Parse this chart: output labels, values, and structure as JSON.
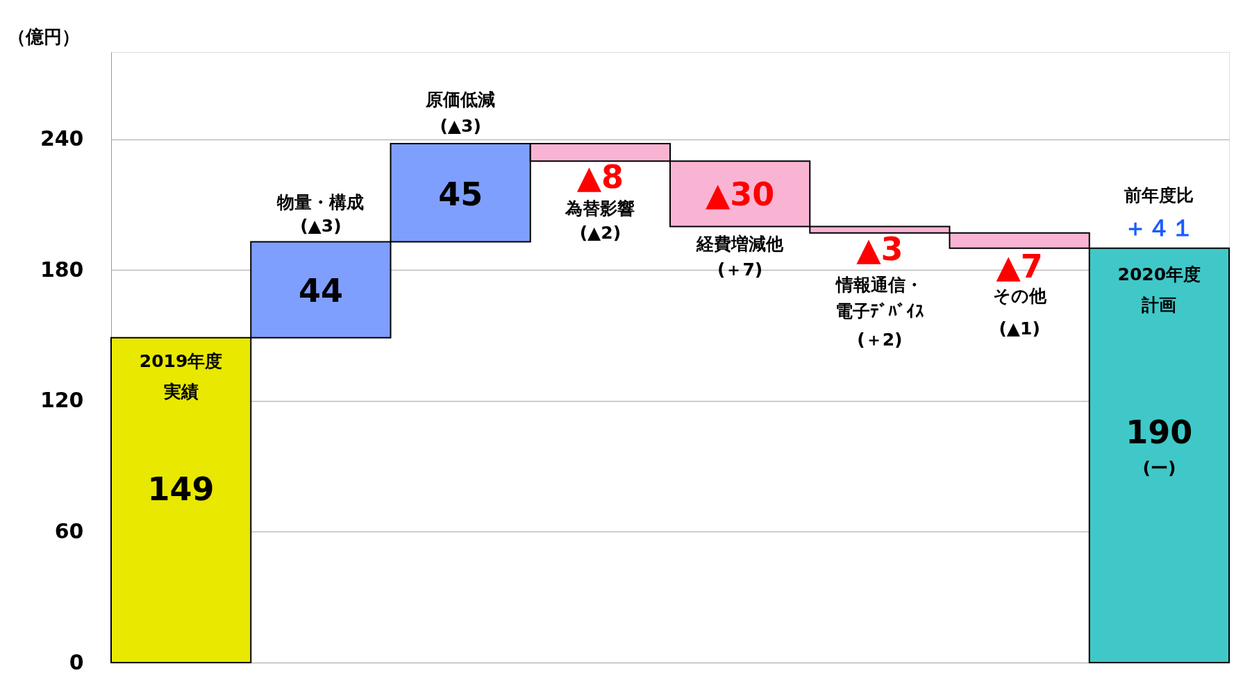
{
  "chart_data": {
    "type": "bar",
    "ylabel": "（億円）",
    "categories": [
      null,
      null,
      null,
      null,
      null,
      null,
      null,
      null
    ],
    "values": [
      149,
      44,
      45,
      -8,
      -30,
      -3,
      -7,
      190
    ],
    "base": [
      0,
      149,
      193,
      238,
      230,
      200,
      197,
      0
    ],
    "colors": [
      "#e8e800",
      "#7f9fff",
      "#7f9fff",
      "#f9b4d4",
      "#f9b4d4",
      "#f9b4d4",
      "#f9b4d4",
      "#40c8c8"
    ],
    "value_labels": [
      "149",
      "44",
      "45",
      "▲8",
      "▲30",
      "▲3",
      "▲7",
      "190"
    ],
    "ylim": [
      0,
      280
    ],
    "yticks": [
      0,
      60,
      120,
      180,
      240
    ],
    "grid": "y",
    "tick_labels": "y",
    "annotations": [
      "2019年度",
      "実績",
      "物量・構成",
      "(▲3)",
      "原価低減",
      "(▲3)",
      "為替影響",
      "(▲2)",
      "経費増減他",
      "(＋7)",
      "情報通信・",
      "電子ﾃﾞﾊﾞｲｽ",
      "(＋2)",
      "その他",
      "(▲1)",
      "前年度比",
      "＋４１",
      "2020年度",
      "計画",
      "(ー)"
    ]
  }
}
